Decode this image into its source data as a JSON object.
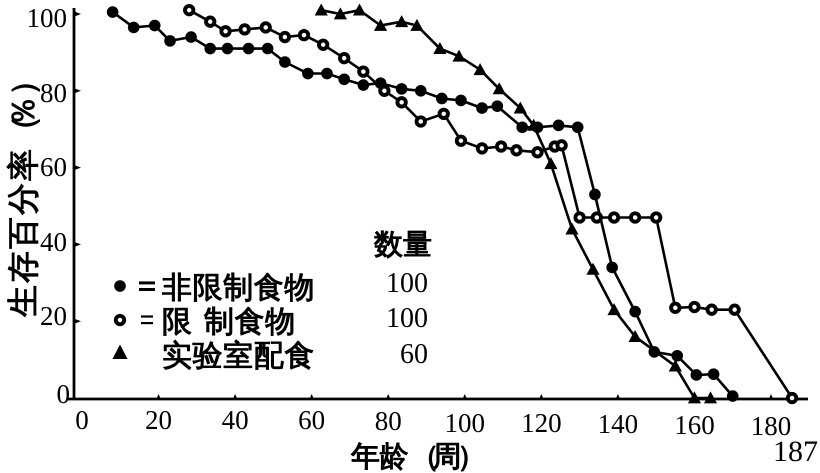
{
  "page": {
    "page_number": "187"
  },
  "colors": {
    "ink": "#000000",
    "paper": "#ffffff"
  },
  "chart_data": {
    "type": "line",
    "title": "",
    "xlabel": "年龄（周）",
    "ylabel": "生存百分率（%）",
    "xlim": [
      0,
      190
    ],
    "ylim": [
      0,
      100
    ],
    "x_ticks": [
      0,
      20,
      40,
      60,
      80,
      100,
      120,
      140,
      160,
      180
    ],
    "y_ticks": [
      0,
      20,
      40,
      60,
      80,
      100
    ],
    "grid": false,
    "legend_position": "inside-lower-left",
    "legend": {
      "header": "数量",
      "rows": [
        {
          "marker": "filled-circle",
          "equals": "=",
          "label": "非限制食物",
          "count": "100"
        },
        {
          "marker": "open-circle",
          "equals": "=",
          "label": "限 制食物",
          "count": "100"
        },
        {
          "marker": "filled-triangle",
          "equals": "",
          "label": "实验室配食",
          "count": "60"
        }
      ]
    },
    "series": [
      {
        "name": "非限制食物",
        "marker": "filled-circle",
        "n": 100,
        "points": [
          [
            8,
            100.5
          ],
          [
            13.5,
            96.5
          ],
          [
            19,
            97
          ],
          [
            23,
            93
          ],
          [
            28.5,
            94
          ],
          [
            33.5,
            91
          ],
          [
            38,
            91
          ],
          [
            43.5,
            91
          ],
          [
            48.5,
            91
          ],
          [
            53,
            87.5
          ],
          [
            59,
            84.5
          ],
          [
            64,
            84.5
          ],
          [
            68.5,
            83
          ],
          [
            73.5,
            81.5
          ],
          [
            78,
            82
          ],
          [
            83.5,
            80.5
          ],
          [
            88.5,
            80
          ],
          [
            94,
            78
          ],
          [
            99,
            77.5
          ],
          [
            104.5,
            75.5
          ],
          [
            108.5,
            76
          ],
          [
            115,
            70.5
          ],
          [
            119,
            70.5
          ],
          [
            124.5,
            71
          ],
          [
            129.5,
            70.5
          ],
          [
            134,
            53
          ],
          [
            138.5,
            34
          ],
          [
            144.5,
            22.5
          ],
          [
            149.5,
            12
          ],
          [
            155.5,
            11
          ],
          [
            160.5,
            6
          ],
          [
            165,
            6.2
          ],
          [
            170,
            0.5
          ]
        ]
      },
      {
        "name": "限制食物",
        "marker": "open-circle",
        "n": 100,
        "points": [
          [
            28,
            101
          ],
          [
            33.5,
            98
          ],
          [
            37.5,
            95.5
          ],
          [
            42.5,
            96
          ],
          [
            48,
            96.5
          ],
          [
            53,
            94
          ],
          [
            58,
            94.5
          ],
          [
            63,
            92
          ],
          [
            68.5,
            88.5
          ],
          [
            73.5,
            85
          ],
          [
            79,
            80
          ],
          [
            83.5,
            77
          ],
          [
            88.5,
            72
          ],
          [
            94.5,
            74
          ],
          [
            99,
            67
          ],
          [
            104.5,
            65
          ],
          [
            109.5,
            65.5
          ],
          [
            113.5,
            64.5
          ],
          [
            119,
            64
          ],
          [
            123.5,
            65.5
          ],
          [
            125.3,
            65.8
          ],
          [
            130,
            47
          ],
          [
            134.5,
            47
          ],
          [
            139,
            47
          ],
          [
            144.5,
            47
          ],
          [
            150,
            47
          ],
          [
            155,
            23.5
          ],
          [
            160,
            23.7
          ],
          [
            164.5,
            23
          ],
          [
            170.5,
            23
          ],
          [
            185.5,
            0
          ]
        ]
      },
      {
        "name": "实验室配食",
        "marker": "filled-triangle",
        "n": 60,
        "points": [
          [
            62.5,
            101
          ],
          [
            67.5,
            100
          ],
          [
            72.5,
            101
          ],
          [
            78,
            97
          ],
          [
            83.5,
            98
          ],
          [
            87.5,
            97
          ],
          [
            93.5,
            91
          ],
          [
            98.5,
            89
          ],
          [
            104,
            85.5
          ],
          [
            109,
            80.5
          ],
          [
            114.5,
            75.5
          ],
          [
            118,
            71
          ],
          [
            122.5,
            61
          ],
          [
            128,
            44
          ],
          [
            133.5,
            33.5
          ],
          [
            139,
            23
          ],
          [
            144.5,
            16
          ],
          [
            155,
            8.3
          ],
          [
            160,
            0
          ],
          [
            164.2,
            0
          ]
        ]
      }
    ]
  }
}
